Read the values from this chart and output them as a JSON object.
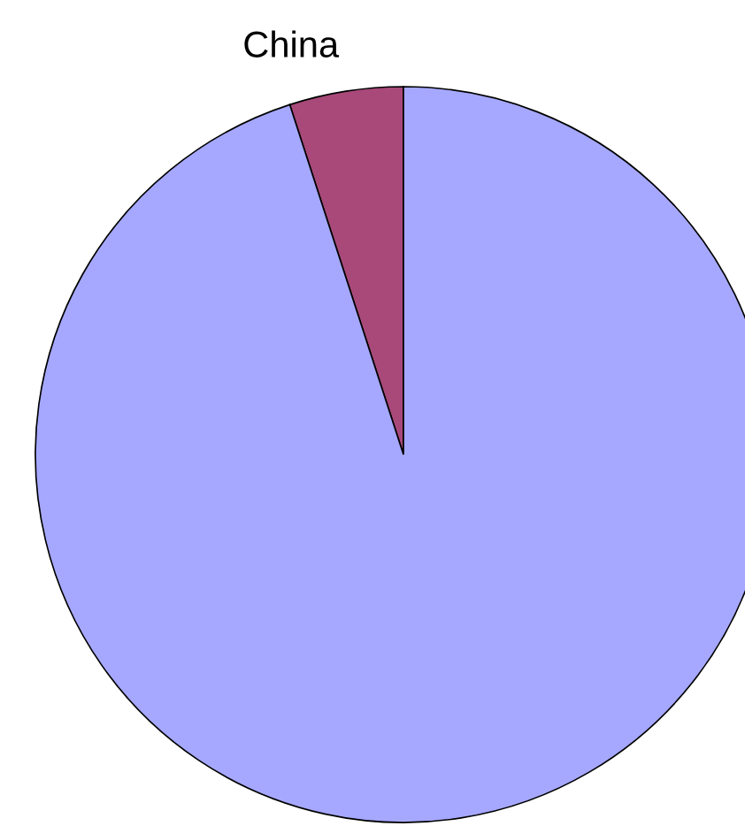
{
  "chart_data": {
    "type": "pie",
    "categories": [
      "China",
      null
    ],
    "values": [
      5,
      95
    ],
    "colors": [
      "#a8497a",
      "#a6a8ff"
    ]
  }
}
